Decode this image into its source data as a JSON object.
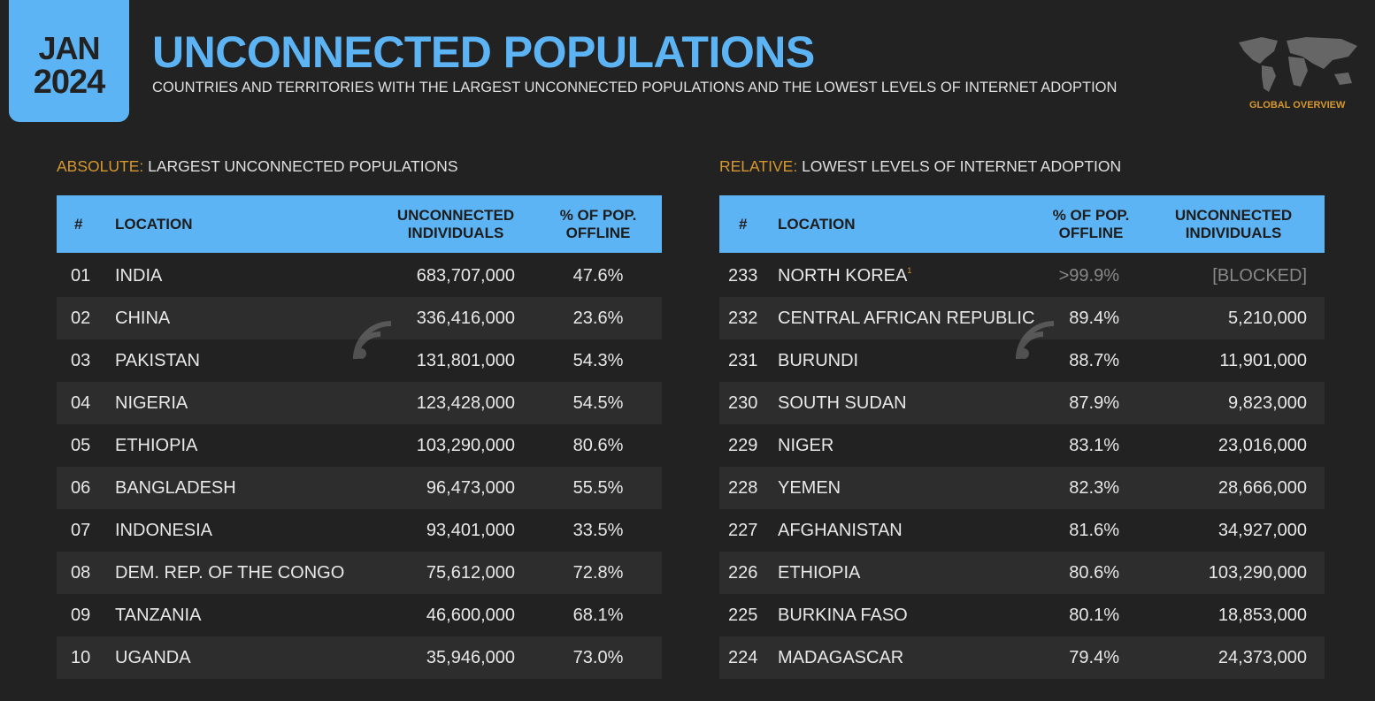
{
  "header": {
    "month": "JAN",
    "year": "2024",
    "title": "UNCONNECTED POPULATIONS",
    "subtitle": "COUNTRIES AND TERRITORIES WITH THE LARGEST UNCONNECTED POPULATIONS AND THE LOWEST LEVELS OF INTERNET ADOPTION",
    "badge": "GLOBAL OVERVIEW"
  },
  "colors": {
    "accent": "#5db4f5",
    "gold": "#d6982e",
    "bg": "#222222"
  },
  "absolute": {
    "prefix": "ABSOLUTE:",
    "heading": "LARGEST UNCONNECTED POPULATIONS",
    "cols": [
      "#",
      "LOCATION",
      "UNCONNECTED INDIVIDUALS",
      "% OF POP. OFFLINE"
    ],
    "rows": [
      {
        "n": "01",
        "loc": "INDIA",
        "ind": "683,707,000",
        "pct": "47.6%"
      },
      {
        "n": "02",
        "loc": "CHINA",
        "ind": "336,416,000",
        "pct": "23.6%"
      },
      {
        "n": "03",
        "loc": "PAKISTAN",
        "ind": "131,801,000",
        "pct": "54.3%"
      },
      {
        "n": "04",
        "loc": "NIGERIA",
        "ind": "123,428,000",
        "pct": "54.5%"
      },
      {
        "n": "05",
        "loc": "ETHIOPIA",
        "ind": "103,290,000",
        "pct": "80.6%"
      },
      {
        "n": "06",
        "loc": "BANGLADESH",
        "ind": "96,473,000",
        "pct": "55.5%"
      },
      {
        "n": "07",
        "loc": "INDONESIA",
        "ind": "93,401,000",
        "pct": "33.5%"
      },
      {
        "n": "08",
        "loc": "DEM. REP. OF THE CONGO",
        "ind": "75,612,000",
        "pct": "72.8%"
      },
      {
        "n": "09",
        "loc": "TANZANIA",
        "ind": "46,600,000",
        "pct": "68.1%"
      },
      {
        "n": "10",
        "loc": "UGANDA",
        "ind": "35,946,000",
        "pct": "73.0%"
      }
    ]
  },
  "relative": {
    "prefix": "RELATIVE:",
    "heading": "LOWEST LEVELS OF INTERNET ADOPTION",
    "cols": [
      "#",
      "LOCATION",
      "% OF POP. OFFLINE",
      "UNCONNECTED INDIVIDUALS"
    ],
    "footnote": "1",
    "rows": [
      {
        "n": "233",
        "loc": "NORTH KOREA",
        "pct": ">99.9%",
        "ind": "[BLOCKED]"
      },
      {
        "n": "232",
        "loc": "CENTRAL AFRICAN REPUBLIC",
        "pct": "89.4%",
        "ind": "5,210,000"
      },
      {
        "n": "231",
        "loc": "BURUNDI",
        "pct": "88.7%",
        "ind": "11,901,000"
      },
      {
        "n": "230",
        "loc": "SOUTH SUDAN",
        "pct": "87.9%",
        "ind": "9,823,000"
      },
      {
        "n": "229",
        "loc": "NIGER",
        "pct": "83.1%",
        "ind": "23,016,000"
      },
      {
        "n": "228",
        "loc": "YEMEN",
        "pct": "82.3%",
        "ind": "28,666,000"
      },
      {
        "n": "227",
        "loc": "AFGHANISTAN",
        "pct": "81.6%",
        "ind": "34,927,000"
      },
      {
        "n": "226",
        "loc": "ETHIOPIA",
        "pct": "80.6%",
        "ind": "103,290,000"
      },
      {
        "n": "225",
        "loc": "BURKINA FASO",
        "pct": "80.1%",
        "ind": "18,853,000"
      },
      {
        "n": "224",
        "loc": "MADAGASCAR",
        "pct": "79.4%",
        "ind": "24,373,000"
      }
    ]
  }
}
